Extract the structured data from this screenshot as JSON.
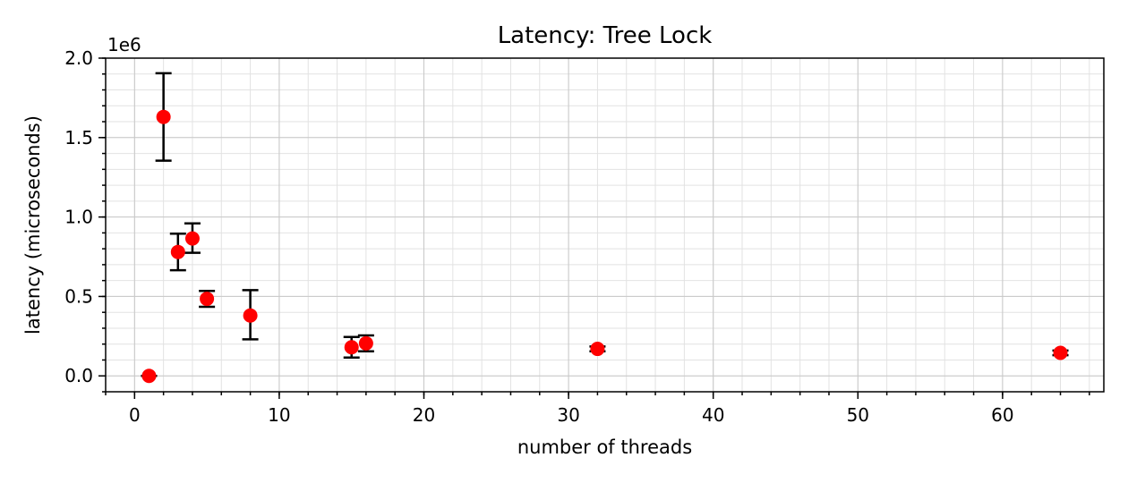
{
  "chart_data": {
    "type": "scatter",
    "title": "Latency: Tree Lock",
    "xlabel": "number of threads",
    "ylabel": "latency (microseconds)",
    "y_offset_label": "1e6",
    "xlim": [
      -2,
      67
    ],
    "ylim": [
      -0.1,
      2.0
    ],
    "xticks": [
      0,
      10,
      20,
      30,
      40,
      50,
      60
    ],
    "xtick_labels": [
      "0",
      "10",
      "20",
      "30",
      "40",
      "50",
      "60"
    ],
    "yticks": [
      0.0,
      0.5,
      1.0,
      1.5,
      2.0
    ],
    "ytick_labels": [
      "0.0",
      "0.5",
      "1.0",
      "1.5",
      "2.0"
    ],
    "grid": true,
    "marker_color": "#ff0000",
    "errorbar_color": "#000000",
    "points": [
      {
        "x": 1,
        "y": 0.0,
        "yerr_low": 0.0,
        "yerr_high": 0.0
      },
      {
        "x": 2,
        "y": 1.63,
        "yerr_low": 1.355,
        "yerr_high": 1.905
      },
      {
        "x": 3,
        "y": 0.78,
        "yerr_low": 0.665,
        "yerr_high": 0.895
      },
      {
        "x": 4,
        "y": 0.865,
        "yerr_low": 0.775,
        "yerr_high": 0.96
      },
      {
        "x": 5,
        "y": 0.485,
        "yerr_low": 0.435,
        "yerr_high": 0.535
      },
      {
        "x": 8,
        "y": 0.38,
        "yerr_low": 0.23,
        "yerr_high": 0.54
      },
      {
        "x": 15,
        "y": 0.18,
        "yerr_low": 0.115,
        "yerr_high": 0.245
      },
      {
        "x": 16,
        "y": 0.205,
        "yerr_low": 0.155,
        "yerr_high": 0.255
      },
      {
        "x": 32,
        "y": 0.17,
        "yerr_low": 0.155,
        "yerr_high": 0.185
      },
      {
        "x": 64,
        "y": 0.145,
        "yerr_low": 0.13,
        "yerr_high": 0.16
      }
    ]
  }
}
